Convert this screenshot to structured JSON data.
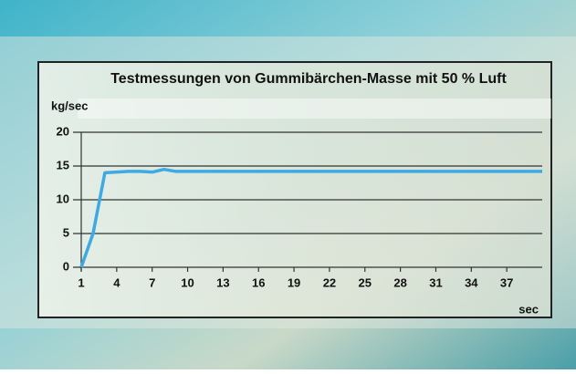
{
  "chart_data": {
    "type": "line",
    "title": "Testmessungen von Gummibärchen-Masse mit 50 % Luft",
    "y_label": "kg/sec",
    "x_label": "sec",
    "color": "#3ea9e2",
    "x": [
      1,
      2,
      3,
      4,
      5,
      6,
      7,
      8,
      9,
      10,
      11,
      12,
      13,
      14,
      15,
      16,
      17,
      18,
      19,
      20,
      21,
      22,
      23,
      24,
      25,
      26,
      27,
      28,
      29,
      30,
      31,
      32,
      33,
      34,
      35,
      36,
      37,
      38,
      39,
      40
    ],
    "values": [
      0,
      5,
      14,
      14.1,
      14.2,
      14.2,
      14.1,
      14.5,
      14.2,
      14.2,
      14.2,
      14.2,
      14.2,
      14.2,
      14.2,
      14.2,
      14.2,
      14.2,
      14.2,
      14.2,
      14.2,
      14.2,
      14.2,
      14.2,
      14.2,
      14.2,
      14.2,
      14.2,
      14.2,
      14.2,
      14.2,
      14.2,
      14.2,
      14.2,
      14.2,
      14.2,
      14.2,
      14.2,
      14.2,
      14.2
    ],
    "xlim": [
      1,
      40
    ],
    "xticks": [
      1,
      4,
      7,
      10,
      13,
      16,
      19,
      22,
      25,
      28,
      31,
      34,
      37
    ],
    "ylim": [
      0,
      20
    ],
    "yticks": [
      0,
      5,
      10,
      15,
      20
    ],
    "grid": true
  }
}
